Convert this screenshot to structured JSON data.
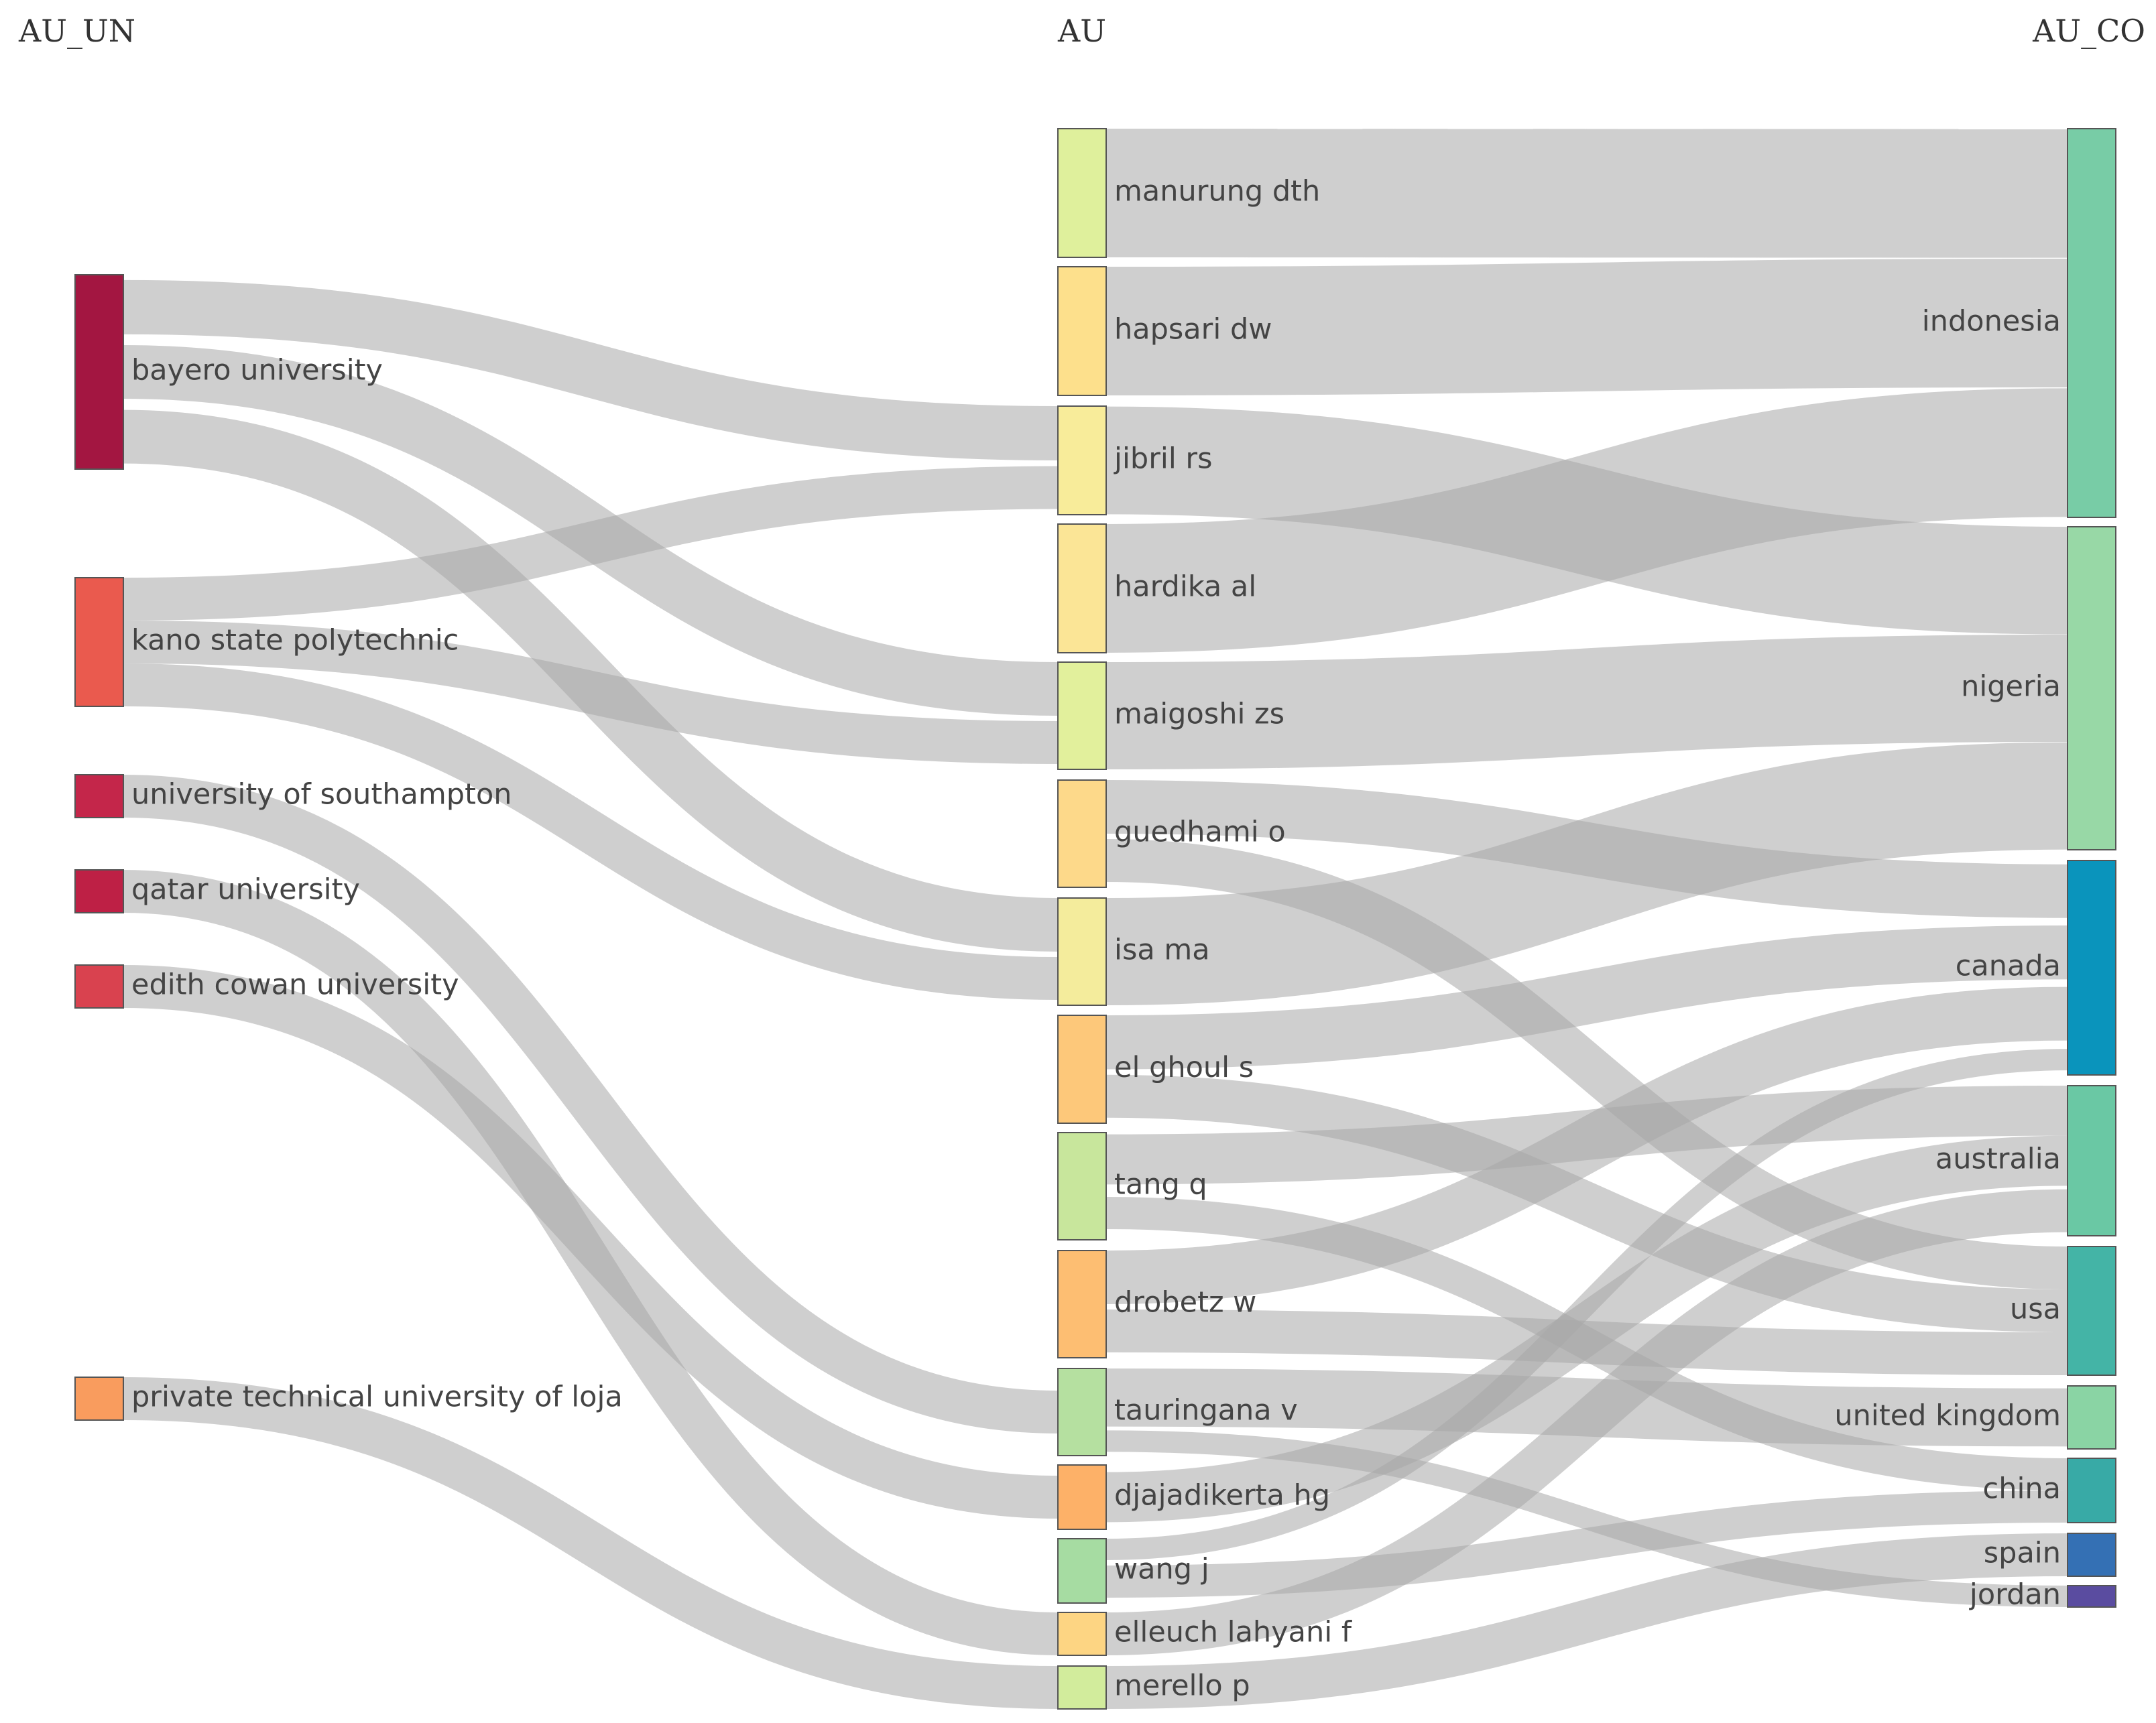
{
  "headers": {
    "left": "AU_UN",
    "middle": "AU",
    "right": "AU_CO"
  },
  "link_color": "#a8a8a8",
  "sources": [
    {
      "id": "bayero",
      "label": "bayero university",
      "color": "#a31641"
    },
    {
      "id": "kano",
      "label": "kano state polytechnic",
      "color": "#ea5a4e"
    },
    {
      "id": "southampton",
      "label": "university of southampton",
      "color": "#c4264a"
    },
    {
      "id": "qatar",
      "label": "qatar university",
      "color": "#be2045"
    },
    {
      "id": "edith",
      "label": "edith cowan university",
      "color": "#d9424f"
    },
    {
      "id": "loja",
      "label": "private technical university of loja",
      "color": "#f99c5e"
    }
  ],
  "authors": [
    {
      "id": "manurung",
      "label": "manurung dth",
      "color": "#dff09c"
    },
    {
      "id": "hapsari",
      "label": "hapsari dw",
      "color": "#fde08c"
    },
    {
      "id": "jibril",
      "label": "jibril rs",
      "color": "#f8ec9a"
    },
    {
      "id": "hardika",
      "label": "hardika al",
      "color": "#fbe596"
    },
    {
      "id": "maigoshi",
      "label": "maigoshi zs",
      "color": "#e2f09c"
    },
    {
      "id": "guedhami",
      "label": "guedhami o",
      "color": "#fdd98a"
    },
    {
      "id": "isa",
      "label": "isa ma",
      "color": "#f4ec9c"
    },
    {
      "id": "elghoul",
      "label": "el ghoul s",
      "color": "#fdc87a"
    },
    {
      "id": "tang",
      "label": "tang q",
      "color": "#c8e69c"
    },
    {
      "id": "drobetz",
      "label": "drobetz w",
      "color": "#fdbe72"
    },
    {
      "id": "tauringana",
      "label": "tauringana v",
      "color": "#b5e0a0"
    },
    {
      "id": "djajadikerta",
      "label": "djajadikerta hg",
      "color": "#fdb168"
    },
    {
      "id": "wangj",
      "label": "wang j",
      "color": "#a6dca2"
    },
    {
      "id": "elleuch",
      "label": "elleuch lahyani f",
      "color": "#fdd583"
    },
    {
      "id": "merello",
      "label": "merello p",
      "color": "#d2ec9c"
    }
  ],
  "countries": [
    {
      "id": "indonesia",
      "label": "indonesia",
      "color": "#78cca6"
    },
    {
      "id": "nigeria",
      "label": "nigeria",
      "color": "#98d8a6"
    },
    {
      "id": "canada",
      "label": "canada",
      "color": "#0a94bc"
    },
    {
      "id": "australia",
      "label": "australia",
      "color": "#6ac8a4"
    },
    {
      "id": "usa",
      "label": "usa",
      "color": "#44b4a6"
    },
    {
      "id": "uk",
      "label": "united kingdom",
      "color": "#8ad4a4"
    },
    {
      "id": "china",
      "label": "china",
      "color": "#38aaa6"
    },
    {
      "id": "spain",
      "label": "spain",
      "color": "#3470b4"
    },
    {
      "id": "jordan",
      "label": "jordan",
      "color": "#5a4ca0"
    }
  ],
  "links_left": [
    {
      "from": "bayero",
      "to": "jibril",
      "value": 1
    },
    {
      "from": "bayero",
      "to": "maigoshi",
      "value": 1
    },
    {
      "from": "bayero",
      "to": "isa",
      "value": 1
    },
    {
      "from": "kano",
      "to": "jibril",
      "value": 1
    },
    {
      "from": "kano",
      "to": "maigoshi",
      "value": 1
    },
    {
      "from": "kano",
      "to": "isa",
      "value": 1
    },
    {
      "from": "southampton",
      "to": "tauringana",
      "value": 1
    },
    {
      "from": "qatar",
      "to": "elleuch",
      "value": 1
    },
    {
      "from": "edith",
      "to": "djajadikerta",
      "value": 1
    },
    {
      "from": "loja",
      "to": "merello",
      "value": 1
    }
  ],
  "links_right": [
    {
      "from": "manurung",
      "to": "indonesia",
      "value": 2
    },
    {
      "from": "hapsari",
      "to": "indonesia",
      "value": 2
    },
    {
      "from": "jibril",
      "to": "nigeria",
      "value": 2
    },
    {
      "from": "hardika",
      "to": "indonesia",
      "value": 2
    },
    {
      "from": "maigoshi",
      "to": "nigeria",
      "value": 2
    },
    {
      "from": "guedhami",
      "to": "canada",
      "value": 1
    },
    {
      "from": "guedhami",
      "to": "usa",
      "value": 1
    },
    {
      "from": "isa",
      "to": "nigeria",
      "value": 2
    },
    {
      "from": "elghoul",
      "to": "canada",
      "value": 1
    },
    {
      "from": "elghoul",
      "to": "usa",
      "value": 1
    },
    {
      "from": "tang",
      "to": "australia",
      "value": 1
    },
    {
      "from": "tang",
      "to": "china",
      "value": 1
    },
    {
      "from": "drobetz",
      "to": "canada",
      "value": 1
    },
    {
      "from": "drobetz",
      "to": "usa",
      "value": 1
    },
    {
      "from": "tauringana",
      "to": "uk",
      "value": 1
    },
    {
      "from": "tauringana",
      "to": "jordan",
      "value": 0.5
    },
    {
      "from": "djajadikerta",
      "to": "australia",
      "value": 1
    },
    {
      "from": "wangj",
      "to": "canada",
      "value": 0.5
    },
    {
      "from": "wangj",
      "to": "china",
      "value": 1
    },
    {
      "from": "elleuch",
      "to": "australia",
      "value": 1
    },
    {
      "from": "merello",
      "to": "spain",
      "value": 1
    }
  ]
}
